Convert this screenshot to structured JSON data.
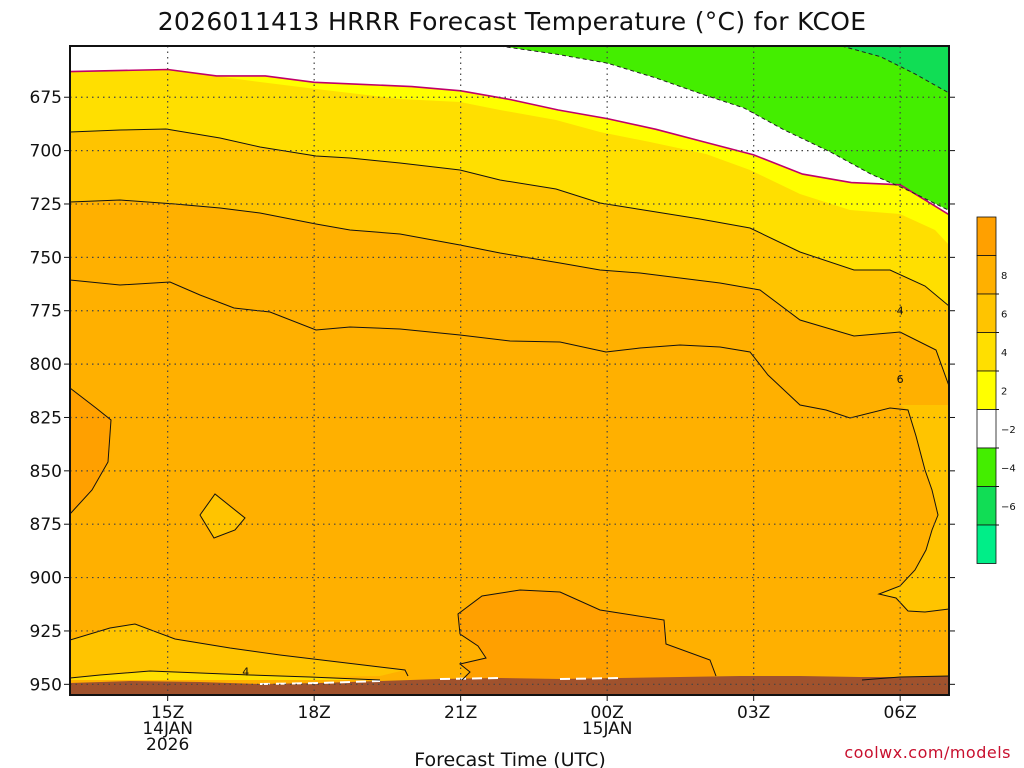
{
  "chart_data": {
    "type": "heatmap",
    "title": "2026011413 HRRR Forecast Temperature (°C) for KCOE",
    "xlabel": "Forecast Time (UTC)",
    "ylabel": "",
    "credit": "coolwx.com/models",
    "x_range_hours": [
      13,
      31
    ],
    "y_range_hpa": [
      955,
      651
    ],
    "y_ticks": [
      "675",
      "700",
      "725",
      "750",
      "775",
      "800",
      "825",
      "850",
      "875",
      "900",
      "925",
      "950"
    ],
    "x_ticks": [
      {
        "hour": 15,
        "lines": [
          "15Z",
          "14JAN",
          "2026"
        ]
      },
      {
        "hour": 18,
        "lines": [
          "18Z"
        ]
      },
      {
        "hour": 21,
        "lines": [
          "21Z"
        ]
      },
      {
        "hour": 24,
        "lines": [
          "00Z",
          "15JAN"
        ]
      },
      {
        "hour": 27,
        "lines": [
          "03Z"
        ]
      },
      {
        "hour": 30,
        "lines": [
          "06Z"
        ]
      }
    ],
    "grid": true,
    "colorbar": {
      "levels": [
        {
          "label": "",
          "color": "#ffa000"
        },
        {
          "label": "8",
          "color": "#ffb000"
        },
        {
          "label": "6",
          "color": "#ffc400"
        },
        {
          "label": "4",
          "color": "#ffdf00"
        },
        {
          "label": "2",
          "color": "#ffff00"
        },
        {
          "label": "−2",
          "color": "#ffffff"
        },
        {
          "label": "−4",
          "color": "#44ee00"
        },
        {
          "label": "−6",
          "color": "#11dd55"
        },
        {
          "label": "",
          "color": "#00ee88"
        }
      ]
    },
    "fill_regions": [
      {
        "level": "above 8",
        "color": "#ffa000"
      },
      {
        "level": "6 to 8",
        "color": "#ffb000"
      },
      {
        "level": "4 to 6",
        "color": "#ffc400"
      },
      {
        "level": "2 to 4",
        "color": "#ffdf00"
      },
      {
        "level": "0 to 2",
        "color": "#ffff00"
      },
      {
        "level": "-2 to 0",
        "color": "#ffffff"
      },
      {
        "level": "-4 to -2",
        "color": "#44ee00"
      },
      {
        "level": "below -4",
        "color": "#11dd55"
      },
      {
        "level": "terrain",
        "color": "#a0522d"
      }
    ],
    "contour_labels": [
      {
        "text": "4",
        "hour": 16.6,
        "p": 944
      },
      {
        "text": "4",
        "hour": 30.0,
        "p": 775
      },
      {
        "text": "6",
        "hour": 30.0,
        "p": 807
      }
    ],
    "isotherms": [
      {
        "level": "0",
        "color": "#c0006a",
        "style": "solid",
        "points": [
          [
            13,
            663
          ],
          [
            15,
            662
          ],
          [
            16,
            665
          ],
          [
            17,
            665
          ],
          [
            18,
            668
          ],
          [
            19,
            669
          ],
          [
            20,
            670
          ],
          [
            21,
            672
          ],
          [
            22,
            676
          ],
          [
            23,
            681
          ],
          [
            24,
            685
          ],
          [
            25,
            690
          ],
          [
            26,
            696
          ],
          [
            27,
            702
          ],
          [
            28,
            711
          ],
          [
            29,
            715
          ],
          [
            30,
            716
          ],
          [
            30.5,
            723
          ],
          [
            31,
            730
          ]
        ]
      },
      {
        "level": "-2",
        "color": "#222",
        "style": "dashed",
        "points": [
          [
            21.8,
            651
          ],
          [
            23,
            655
          ],
          [
            24,
            659
          ],
          [
            25,
            666
          ],
          [
            26,
            674
          ],
          [
            26.8,
            680
          ],
          [
            27.6,
            690
          ],
          [
            28.6,
            701
          ],
          [
            29.4,
            711
          ],
          [
            30.2,
            719
          ],
          [
            31,
            728
          ]
        ]
      },
      {
        "level": "-4",
        "color": "#222",
        "style": "dashed",
        "points": [
          [
            28.8,
            651
          ],
          [
            29.6,
            656
          ],
          [
            30.3,
            664
          ],
          [
            31,
            673
          ]
        ]
      }
    ]
  }
}
